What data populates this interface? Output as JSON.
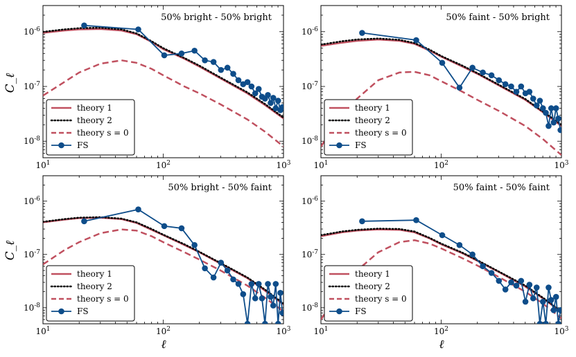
{
  "figure": {
    "ylabel": "C_ℓ",
    "xlabel": "ℓ"
  },
  "chart_data": [
    {
      "type": "line",
      "title": "50% bright - 50% bright",
      "xlabel": "",
      "ylabel": "C_ℓ",
      "xscale": "log",
      "yscale": "log",
      "xlim": [
        10,
        1000
      ],
      "ylim": [
        5e-09,
        3e-06
      ],
      "xticks": [
        "10^1",
        "10^2",
        "10^3"
      ],
      "yticks": [
        "10^-8",
        "10^-7",
        "10^-6"
      ],
      "legend": "bottom-left",
      "series": [
        {
          "name": "theory 1",
          "style": "solid",
          "color": "#c0505f",
          "x": [
            10,
            15,
            20,
            30,
            45,
            60,
            80,
            100,
            150,
            200,
            300,
            500,
            700,
            1000
          ],
          "y": [
            9.5e-07,
            1.05e-06,
            1.1e-06,
            1.12e-06,
            1.05e-06,
            9e-07,
            6.5e-07,
            4.8e-07,
            3.2e-07,
            2.3e-07,
            1.4e-07,
            7.5e-08,
            4.6e-08,
            2.6e-08
          ]
        },
        {
          "name": "theory 2",
          "style": "dotted",
          "color": "#000000",
          "x": [
            10,
            15,
            20,
            30,
            45,
            60,
            80,
            100,
            150,
            200,
            300,
            500,
            700,
            1000
          ],
          "y": [
            9.9e-07,
            1.1e-06,
            1.16e-06,
            1.18e-06,
            1.1e-06,
            9.3e-07,
            6.7e-07,
            5e-07,
            3.3e-07,
            2.4e-07,
            1.45e-07,
            7.8e-08,
            4.8e-08,
            2.7e-08
          ]
        },
        {
          "name": "theory s = 0",
          "style": "dashed",
          "color": "#c0505f",
          "x": [
            10,
            15,
            20,
            30,
            45,
            60,
            80,
            100,
            150,
            200,
            300,
            500,
            700,
            1000
          ],
          "y": [
            6.8e-08,
            1.2e-07,
            1.8e-07,
            2.6e-07,
            3e-07,
            2.7e-07,
            2.1e-07,
            1.6e-07,
            1e-07,
            7.5e-08,
            4.7e-08,
            2.5e-08,
            1.5e-08,
            8e-09
          ]
        },
        {
          "name": "FS",
          "style": "markers",
          "color": "#0e4d8a",
          "x": [
            22,
            62,
            102,
            142,
            182,
            222,
            262,
            302,
            342,
            382,
            422,
            462,
            502,
            542,
            582,
            622,
            662,
            702,
            742,
            782,
            822,
            862,
            902,
            942,
            982
          ],
          "y": [
            1.3e-06,
            1.1e-06,
            3.7e-07,
            4e-07,
            4.5e-07,
            3e-07,
            2.8e-07,
            2e-07,
            2.2e-07,
            1.7e-07,
            1.3e-07,
            1.1e-07,
            1.2e-07,
            1e-07,
            7.5e-08,
            9e-08,
            6.5e-08,
            6e-08,
            7e-08,
            5e-08,
            6.2e-08,
            4e-08,
            5.5e-08,
            3.7e-08,
            4.2e-08
          ]
        }
      ]
    },
    {
      "type": "line",
      "title": "50% faint - 50% bright",
      "xlabel": "",
      "ylabel": "",
      "xscale": "log",
      "yscale": "log",
      "xlim": [
        10,
        1000
      ],
      "ylim": [
        5e-09,
        3e-06
      ],
      "xticks": [
        "10^1",
        "10^2",
        "10^3"
      ],
      "yticks": [
        "10^-8",
        "10^-7",
        "10^-6"
      ],
      "legend": "bottom-left",
      "series": [
        {
          "name": "theory 1",
          "style": "solid",
          "color": "#c0505f",
          "x": [
            10,
            15,
            20,
            30,
            45,
            60,
            80,
            100,
            150,
            200,
            300,
            500,
            700,
            1000
          ],
          "y": [
            5.5e-07,
            6.3e-07,
            6.8e-07,
            7.2e-07,
            6.8e-07,
            6e-07,
            4.5e-07,
            3.5e-07,
            2.3e-07,
            1.7e-07,
            1.05e-07,
            5.7e-08,
            3.4e-08,
            1.9e-08
          ]
        },
        {
          "name": "theory 2",
          "style": "dotted",
          "color": "#000000",
          "x": [
            10,
            15,
            20,
            30,
            45,
            60,
            80,
            100,
            150,
            200,
            300,
            500,
            700,
            1000
          ],
          "y": [
            5.8e-07,
            6.7e-07,
            7.2e-07,
            7.5e-07,
            7.1e-07,
            6.2e-07,
            4.7e-07,
            3.6e-07,
            2.4e-07,
            1.75e-07,
            1.08e-07,
            5.9e-08,
            3.5e-08,
            2e-08
          ]
        },
        {
          "name": "theory s = 0",
          "style": "dashed",
          "color": "#c0505f",
          "x": [
            10,
            15,
            20,
            30,
            45,
            60,
            80,
            100,
            150,
            200,
            300,
            500,
            700,
            1000
          ],
          "y": [
            8e-09,
            3e-08,
            6e-08,
            1.3e-07,
            1.8e-07,
            1.85e-07,
            1.6e-07,
            1.25e-07,
            8e-08,
            5.7e-08,
            3.6e-08,
            1.9e-08,
            1.1e-08,
            5.6e-09
          ]
        },
        {
          "name": "FS",
          "style": "markers",
          "color": "#0e4d8a",
          "x": [
            22,
            62,
            102,
            142,
            182,
            222,
            262,
            302,
            342,
            382,
            422,
            462,
            502,
            542,
            582,
            622,
            662,
            702,
            742,
            782,
            822,
            862,
            902,
            942,
            982
          ],
          "y": [
            9.5e-07,
            7e-07,
            2.7e-07,
            9.5e-08,
            2.2e-07,
            1.8e-07,
            1.6e-07,
            1.3e-07,
            1.1e-07,
            1e-07,
            8e-08,
            1e-07,
            7.5e-08,
            8e-08,
            6e-08,
            4.5e-08,
            5.5e-08,
            4e-08,
            3.3e-08,
            1.9e-08,
            4e-08,
            2.2e-08,
            4e-08,
            2.6e-08,
            1.6e-08
          ]
        }
      ]
    },
    {
      "type": "line",
      "title": "50% bright - 50% faint",
      "xlabel": "ℓ",
      "ylabel": "C_ℓ",
      "xscale": "log",
      "yscale": "log",
      "xlim": [
        10,
        1000
      ],
      "ylim": [
        5e-09,
        3e-06
      ],
      "xticks": [
        "10^1",
        "10^2",
        "10^3"
      ],
      "yticks": [
        "10^-8",
        "10^-7",
        "10^-6"
      ],
      "legend": "bottom-left",
      "series": [
        {
          "name": "theory 1",
          "style": "solid",
          "color": "#c0505f",
          "x": [
            10,
            15,
            20,
            30,
            45,
            60,
            80,
            100,
            150,
            200,
            300,
            500,
            700,
            1000
          ],
          "y": [
            4e-07,
            4.5e-07,
            4.8e-07,
            4.9e-07,
            4.6e-07,
            3.9e-07,
            2.9e-07,
            2.3e-07,
            1.5e-07,
            1.1e-07,
            6.7e-08,
            3.6e-08,
            2.1e-08,
            1.15e-08
          ]
        },
        {
          "name": "theory 2",
          "style": "dotted",
          "color": "#000000",
          "x": [
            10,
            15,
            20,
            30,
            45,
            60,
            80,
            100,
            150,
            200,
            300,
            500,
            700,
            1000
          ],
          "y": [
            4.1e-07,
            4.6e-07,
            4.9e-07,
            5e-07,
            4.7e-07,
            4e-07,
            3e-07,
            2.35e-07,
            1.55e-07,
            1.12e-07,
            6.9e-08,
            3.7e-08,
            2.2e-08,
            1.2e-08
          ]
        },
        {
          "name": "theory s = 0",
          "style": "dashed",
          "color": "#c0505f",
          "x": [
            10,
            15,
            20,
            30,
            45,
            60,
            80,
            100,
            150,
            200,
            300,
            500,
            700,
            1000
          ],
          "y": [
            6.5e-08,
            1.2e-07,
            1.7e-07,
            2.5e-07,
            2.95e-07,
            2.8e-07,
            2.2e-07,
            1.7e-07,
            1.1e-07,
            8e-08,
            5e-08,
            2.6e-08,
            1.55e-08,
            8.5e-09
          ]
        },
        {
          "name": "FS",
          "style": "markers",
          "color": "#0e4d8a",
          "x": [
            22,
            62,
            102,
            142,
            182,
            222,
            262,
            302,
            342,
            382,
            422,
            462,
            502,
            542,
            582,
            622,
            662,
            702,
            742,
            782,
            822,
            862,
            902,
            942,
            982
          ],
          "y": [
            4.2e-07,
            7e-07,
            3.4e-07,
            3.1e-07,
            1.5e-07,
            5.5e-08,
            3.7e-08,
            7e-08,
            5e-08,
            3.4e-08,
            2.8e-08,
            1.8e-08,
            5e-09,
            2.8e-08,
            1.5e-08,
            2.8e-08,
            1.5e-08,
            5e-09,
            2.8e-08,
            1.6e-08,
            1.1e-08,
            2.8e-08,
            5e-09,
            1.9e-08,
            8e-09
          ]
        }
      ]
    },
    {
      "type": "line",
      "title": "50% faint - 50% faint",
      "xlabel": "ℓ",
      "ylabel": "",
      "xscale": "log",
      "yscale": "log",
      "xlim": [
        10,
        1000
      ],
      "ylim": [
        5e-09,
        3e-06
      ],
      "xticks": [
        "10^1",
        "10^2",
        "10^3"
      ],
      "yticks": [
        "10^-8",
        "10^-7",
        "10^-6"
      ],
      "legend": "bottom-left",
      "series": [
        {
          "name": "theory 1",
          "style": "solid",
          "color": "#c0505f",
          "x": [
            10,
            15,
            20,
            30,
            45,
            60,
            80,
            100,
            150,
            200,
            300,
            500,
            700,
            1000
          ],
          "y": [
            2.2e-07,
            2.6e-07,
            2.8e-07,
            2.95e-07,
            2.9e-07,
            2.6e-07,
            2e-07,
            1.55e-07,
            1.05e-07,
            7.6e-08,
            4.7e-08,
            2.5e-08,
            1.5e-08,
            8.3e-09
          ]
        },
        {
          "name": "theory 2",
          "style": "dotted",
          "color": "#000000",
          "x": [
            10,
            15,
            20,
            30,
            45,
            60,
            80,
            100,
            150,
            200,
            300,
            500,
            700,
            1000
          ],
          "y": [
            2.3e-07,
            2.7e-07,
            2.9e-07,
            3.05e-07,
            3e-07,
            2.7e-07,
            2.05e-07,
            1.6e-07,
            1.08e-07,
            7.8e-08,
            4.8e-08,
            2.6e-08,
            1.55e-08,
            8.6e-09
          ]
        },
        {
          "name": "theory s = 0",
          "style": "dashed",
          "color": "#c0505f",
          "x": [
            10,
            15,
            20,
            30,
            45,
            60,
            80,
            100,
            150,
            200,
            300,
            500,
            700,
            1000
          ],
          "y": [
            6e-09,
            2.4e-08,
            5e-08,
            1.1e-07,
            1.7e-07,
            1.85e-07,
            1.6e-07,
            1.3e-07,
            8.5e-08,
            6.2e-08,
            3.8e-08,
            2e-08,
            1.2e-08,
            6.3e-09
          ]
        },
        {
          "name": "FS",
          "style": "markers",
          "color": "#0e4d8a",
          "x": [
            22,
            62,
            102,
            142,
            182,
            222,
            262,
            302,
            342,
            382,
            422,
            462,
            502,
            542,
            582,
            622,
            662,
            702,
            742,
            782,
            822,
            862,
            902,
            942,
            982
          ],
          "y": [
            4.2e-07,
            4.4e-07,
            2.3e-07,
            1.5e-07,
            1e-07,
            6e-08,
            4.5e-08,
            3.2e-08,
            2.2e-08,
            3e-08,
            2.6e-08,
            3.2e-08,
            1.3e-08,
            2.7e-08,
            1.5e-08,
            2.4e-08,
            5e-09,
            1.3e-08,
            5e-09,
            2.4e-08,
            1.4e-08,
            9e-09,
            1.6e-08,
            5e-09,
            9e-09
          ]
        }
      ]
    }
  ]
}
